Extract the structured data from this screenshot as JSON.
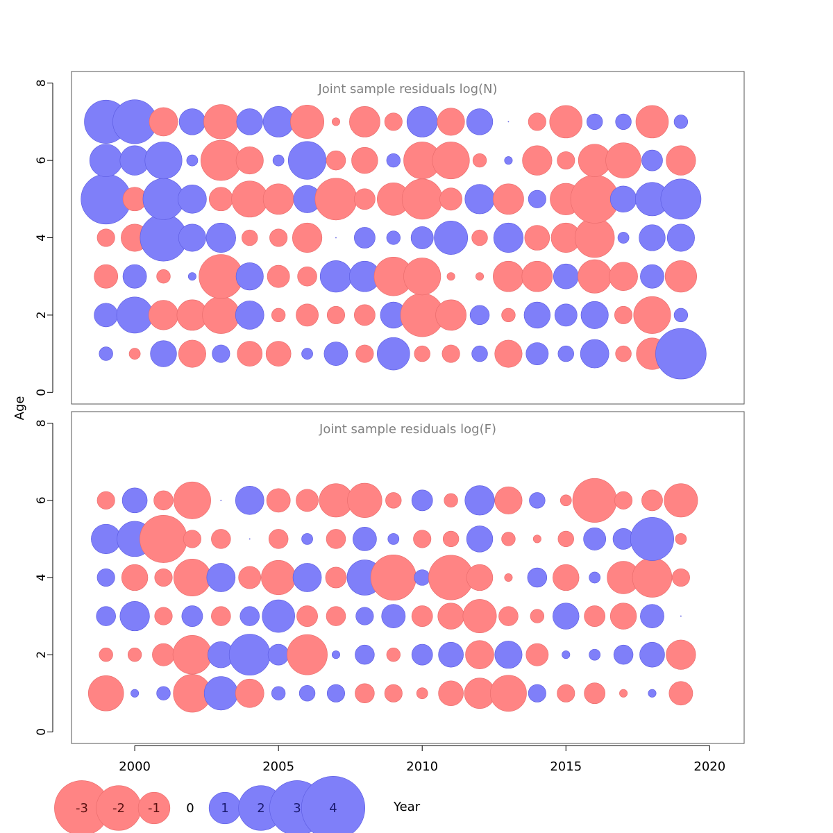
{
  "figure": {
    "xlabel": "Year",
    "ylabel": "Age",
    "colors": {
      "positive": "#7f7ff9",
      "positive_stroke": "#5a5ae0",
      "negative": "#ff8484",
      "negative_stroke": "#e86a6a",
      "axis": "#000000",
      "panel_title": "#808080"
    },
    "legend": [
      {
        "label": "-3",
        "value": -3
      },
      {
        "label": "-2",
        "value": -2
      },
      {
        "label": "-1",
        "value": -1
      },
      {
        "label": "0",
        "value": 0
      },
      {
        "label": "1",
        "value": 1
      },
      {
        "label": "2",
        "value": 2
      },
      {
        "label": "3",
        "value": 3
      },
      {
        "label": "4",
        "value": 4
      }
    ]
  },
  "chart_data": [
    {
      "type": "scatter",
      "title": "Joint sample residuals log(N)",
      "xlabel": "Year",
      "ylabel": "Age",
      "xlim": [
        1997.8,
        2021.2
      ],
      "ylim": [
        -0.3,
        8.3
      ],
      "xticks": [
        "2000",
        "2005",
        "2010",
        "2015",
        "2020"
      ],
      "yticks": [
        "0",
        "2",
        "4",
        "6",
        "8"
      ],
      "encoding": "bubble area ~ |residual|; blue = positive, red = negative",
      "years": [
        1999,
        2000,
        2001,
        2002,
        2003,
        2004,
        2005,
        2006,
        2007,
        2008,
        2009,
        2010,
        2011,
        2012,
        2013,
        2014,
        2015,
        2016,
        2017,
        2018,
        2019
      ],
      "ages": [
        1,
        2,
        3,
        4,
        5,
        6,
        7
      ],
      "residuals": [
        [
          0.3,
          -0.2,
          1.1,
          -1.2,
          0.5,
          -1.0,
          -1.0,
          0.2,
          0.9,
          -0.5,
          1.7,
          -0.4,
          -0.5,
          0.4,
          -1.2,
          0.8,
          0.4,
          1.3,
          -0.4,
          -1.6,
          4.1
        ],
        [
          0.9,
          2.1,
          -1.4,
          -1.5,
          -2.2,
          1.3,
          -0.3,
          -0.8,
          -0.5,
          -0.7,
          1.1,
          -3.0,
          -1.5,
          0.6,
          -0.3,
          1.1,
          0.8,
          1.2,
          -0.5,
          -2.2,
          0.3
        ],
        [
          -0.9,
          0.9,
          -0.3,
          0.1,
          -3.1,
          1.2,
          -0.8,
          -0.6,
          1.6,
          1.5,
          -2.4,
          -2.2,
          -0.1,
          -0.1,
          -1.5,
          -1.5,
          1.0,
          -1.8,
          -1.3,
          0.9,
          -1.6
        ],
        [
          -0.5,
          -1.2,
          3.5,
          1.2,
          1.4,
          -0.4,
          -0.5,
          -1.4,
          0.0,
          0.7,
          0.3,
          0.8,
          1.8,
          -0.4,
          1.4,
          -1.0,
          -1.4,
          -2.5,
          0.2,
          1.1,
          1.2
        ],
        [
          4.0,
          -0.9,
          2.7,
          1.3,
          -0.9,
          -2.1,
          -1.5,
          1.2,
          -2.8,
          -0.7,
          -1.7,
          -2.6,
          -0.8,
          1.4,
          -1.5,
          0.5,
          -1.6,
          -3.7,
          1.1,
          1.8,
          2.6
        ],
        [
          1.7,
          1.4,
          2.2,
          0.2,
          -2.6,
          -1.2,
          0.2,
          2.3,
          -0.6,
          -1.1,
          0.3,
          -2.2,
          -2.2,
          -0.3,
          0.1,
          -1.4,
          -0.5,
          -1.7,
          -2.0,
          0.7,
          -1.4
        ],
        [
          3.0,
          3.1,
          -1.3,
          1.1,
          -1.9,
          1.1,
          1.5,
          -1.8,
          -0.1,
          -1.5,
          -0.5,
          1.5,
          -1.2,
          1.1,
          0.0,
          -0.5,
          -1.7,
          0.4,
          0.4,
          -1.7,
          0.3
        ]
      ]
    },
    {
      "type": "scatter",
      "title": "Joint sample residuals log(F)",
      "xlabel": "Year",
      "ylabel": "Age",
      "xlim": [
        1997.8,
        2021.2
      ],
      "ylim": [
        -0.3,
        8.3
      ],
      "xticks": [
        "2000",
        "2005",
        "2010",
        "2015",
        "2020"
      ],
      "yticks": [
        "0",
        "2",
        "4",
        "6",
        "8"
      ],
      "encoding": "bubble area ~ |residual|; blue = positive, red = negative",
      "years": [
        1999,
        2000,
        2001,
        2002,
        2003,
        2004,
        2005,
        2006,
        2007,
        2008,
        2009,
        2010,
        2011,
        2012,
        2013,
        2014,
        2015,
        2016,
        2017,
        2018,
        2019
      ],
      "ages": [
        1,
        2,
        3,
        4,
        5,
        6
      ],
      "residuals": [
        [
          -2.0,
          0.1,
          0.3,
          -2.3,
          1.8,
          -1.3,
          0.3,
          0.4,
          0.5,
          -0.6,
          -0.5,
          -0.2,
          -1.0,
          -1.5,
          -2.1,
          0.5,
          -0.5,
          -0.7,
          -0.1,
          0.1,
          -0.9
        ],
        [
          -0.3,
          -0.3,
          -0.8,
          -2.4,
          1.1,
          2.7,
          0.7,
          -2.6,
          0.1,
          0.6,
          -0.3,
          0.7,
          1.0,
          -1.3,
          1.2,
          -0.8,
          0.1,
          0.2,
          0.6,
          1.0,
          -1.4
        ],
        [
          0.6,
          1.4,
          -0.5,
          0.7,
          -0.6,
          0.6,
          1.7,
          -0.7,
          -0.6,
          0.5,
          0.9,
          -0.7,
          -1.1,
          -1.8,
          -0.6,
          -0.3,
          1.1,
          -0.7,
          -1.1,
          0.9,
          0.0
        ],
        [
          0.5,
          -1.1,
          -0.5,
          -2.2,
          1.3,
          -0.8,
          -1.9,
          1.3,
          -0.7,
          2.0,
          -3.3,
          0.4,
          -3.2,
          -1.1,
          -0.1,
          0.6,
          -1.1,
          0.2,
          -1.7,
          -2.5,
          -0.5
        ],
        [
          1.4,
          2.0,
          -3.6,
          -0.5,
          -0.6,
          0.0,
          -0.6,
          0.2,
          -0.6,
          0.9,
          0.2,
          -0.5,
          -0.4,
          1.1,
          -0.3,
          -0.1,
          -0.4,
          0.8,
          0.7,
          3.0,
          -0.2
        ],
        [
          -0.5,
          1.0,
          -0.6,
          -2.2,
          -0.0,
          1.3,
          -0.9,
          -0.8,
          -1.8,
          -1.9,
          -0.4,
          0.7,
          -0.3,
          1.4,
          -1.2,
          0.4,
          -0.2,
          -3.1,
          -0.5,
          -0.7,
          -1.8
        ]
      ]
    }
  ]
}
